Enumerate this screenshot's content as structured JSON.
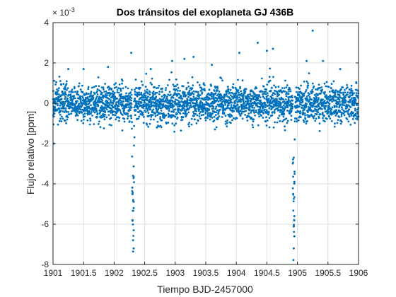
{
  "chart_data": {
    "type": "scatter",
    "title": "Dos tránsitos del exoplaneta GJ 436B",
    "xlabel": "Tiempo BJD-2457000",
    "ylabel": "Flujo relativo [ppm]",
    "xlim": [
      1901,
      1906
    ],
    "ylim": [
      -0.008,
      0.004
    ],
    "x_ticks": [
      1901,
      1901.5,
      1902,
      1902.5,
      1903,
      1903.5,
      1904,
      1904.5,
      1905,
      1905.5,
      1906
    ],
    "x_tick_labels": [
      "1901",
      "1901.5",
      "1902",
      "1902.5",
      "1903",
      "1903.5",
      "1904",
      "1904.5",
      "1905",
      "1905.5",
      "1906"
    ],
    "y_ticks": [
      -0.008,
      -0.006,
      -0.004,
      -0.002,
      0,
      0.002,
      0.004
    ],
    "y_tick_labels": [
      "-8",
      "-6",
      "-4",
      "-2",
      "0",
      "2",
      "4"
    ],
    "y_exponent_label": "× 10",
    "y_exponent_power": "-3",
    "grid": true,
    "marker_color": "#0072BD",
    "baseline": {
      "x_start": 1901,
      "x_end": 1906,
      "n_points": 3000,
      "noise_std": 0.00045
    },
    "transits": [
      {
        "center": 1902.31,
        "depth": -0.0072,
        "half_width": 0.02
      },
      {
        "center": 1904.94,
        "depth": -0.0072,
        "half_width": 0.02
      }
    ],
    "outliers": [
      {
        "x": 1901.01,
        "y": -0.002
      },
      {
        "x": 1901.25,
        "y": 0.0017
      },
      {
        "x": 1901.5,
        "y": 0.0017
      },
      {
        "x": 1901.9,
        "y": 0.0018
      },
      {
        "x": 1902.28,
        "y": 0.0025
      },
      {
        "x": 1902.6,
        "y": 0.0017
      },
      {
        "x": 1902.95,
        "y": 0.0021
      },
      {
        "x": 1903.15,
        "y": 0.0022
      },
      {
        "x": 1903.3,
        "y": 0.0023
      },
      {
        "x": 1903.6,
        "y": 0.0019
      },
      {
        "x": 1904.05,
        "y": 0.0025
      },
      {
        "x": 1904.35,
        "y": 0.003
      },
      {
        "x": 1904.5,
        "y": 0.0026
      },
      {
        "x": 1904.6,
        "y": 0.0027
      },
      {
        "x": 1905.15,
        "y": 0.0021
      },
      {
        "x": 1905.25,
        "y": 0.0036
      },
      {
        "x": 1905.42,
        "y": 0.0021
      },
      {
        "x": 1905.7,
        "y": 0.0017
      },
      {
        "x": 1903.65,
        "y": -0.0013
      },
      {
        "x": 1902.7,
        "y": -0.0012
      },
      {
        "x": 1902.31,
        "y": -0.0036
      },
      {
        "x": 1902.3,
        "y": -0.0045
      },
      {
        "x": 1902.32,
        "y": -0.0052
      },
      {
        "x": 1902.3,
        "y": -0.0058
      },
      {
        "x": 1902.32,
        "y": -0.0063
      },
      {
        "x": 1902.31,
        "y": -0.0068
      },
      {
        "x": 1902.32,
        "y": -0.0072
      },
      {
        "x": 1904.94,
        "y": -0.0027
      },
      {
        "x": 1904.95,
        "y": -0.0039
      },
      {
        "x": 1904.93,
        "y": -0.0045
      },
      {
        "x": 1904.95,
        "y": -0.0056
      },
      {
        "x": 1904.94,
        "y": -0.0061
      },
      {
        "x": 1904.95,
        "y": -0.0066
      },
      {
        "x": 1904.94,
        "y": -0.0072
      }
    ]
  }
}
